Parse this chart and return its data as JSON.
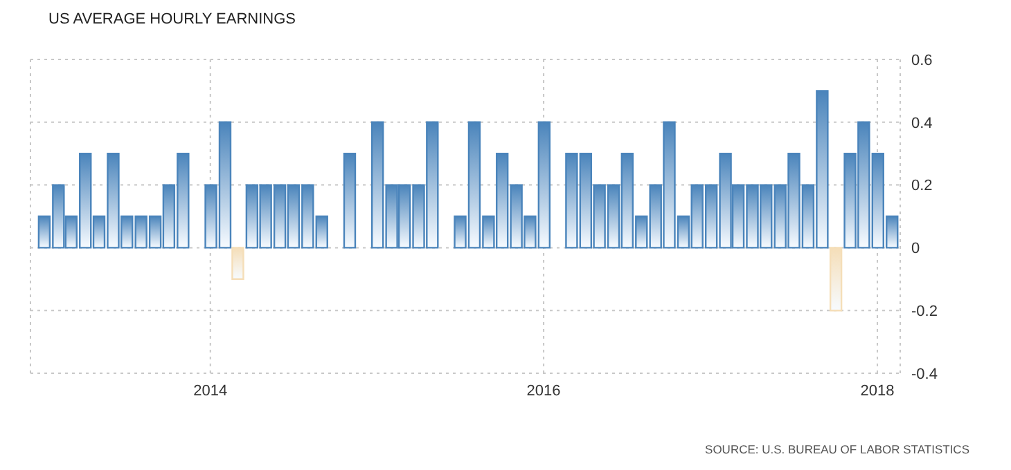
{
  "chart_data": {
    "type": "bar",
    "title": "US AVERAGE HOURLY EARNINGS",
    "x": [
      "2013-01",
      "2013-02",
      "2013-03",
      "2013-04",
      "2013-05",
      "2013-06",
      "2013-07",
      "2013-08",
      "2013-09",
      "2013-10",
      "2013-11",
      "2013-12",
      "2014-01",
      "2014-02",
      "2014-03",
      "2014-04",
      "2014-05",
      "2014-06",
      "2014-07",
      "2014-08",
      "2014-09",
      "2014-10",
      "2014-11",
      "2014-12",
      "2015-01",
      "2015-02",
      "2015-03",
      "2015-04",
      "2015-05",
      "2015-06",
      "2015-07",
      "2015-08",
      "2015-09",
      "2015-10",
      "2015-11",
      "2015-12",
      "2016-01",
      "2016-02",
      "2016-03",
      "2016-04",
      "2016-05",
      "2016-06",
      "2016-07",
      "2016-08",
      "2016-09",
      "2016-10",
      "2016-11",
      "2016-12",
      "2017-01",
      "2017-02",
      "2017-03",
      "2017-04",
      "2017-05",
      "2017-06",
      "2017-07",
      "2017-08",
      "2017-09",
      "2017-10",
      "2017-11",
      "2017-12",
      "2018-01",
      "2018-02"
    ],
    "values": [
      0.1,
      0.2,
      0.1,
      0.3,
      0.1,
      0.3,
      0.1,
      0.1,
      0.1,
      0.2,
      0.3,
      0,
      0.2,
      0.4,
      -0.1,
      0.2,
      0.2,
      0.2,
      0.2,
      0.2,
      0.1,
      0,
      0.3,
      0,
      0.4,
      0.2,
      0.2,
      0.2,
      0.4,
      0,
      0.1,
      0.4,
      0.1,
      0.3,
      0.2,
      0.1,
      0.4,
      0,
      0.3,
      0.3,
      0.2,
      0.2,
      0.3,
      0.1,
      0.2,
      0.4,
      0.1,
      0.2,
      0.2,
      0.3,
      0.2,
      0.2,
      0.2,
      0.2,
      0.3,
      0.2,
      0.5,
      -0.2,
      0.3,
      0.4,
      0.3,
      0.1
    ],
    "colors": [
      "#4a84bb",
      "#4a84bb",
      "#4a84bb",
      "#4a84bb",
      "#4a84bb",
      "#4a84bb",
      "#4a84bb",
      "#4a84bb",
      "#4a84bb",
      "#4a84bb",
      "#4a84bb",
      "#4a84bb",
      "#4a84bb",
      "#4a84bb",
      "#f5deb8",
      "#4a84bb",
      "#4a84bb",
      "#4a84bb",
      "#4a84bb",
      "#4a84bb",
      "#4a84bb",
      "#4a84bb",
      "#4a84bb",
      "#4a84bb",
      "#4a84bb",
      "#4a84bb",
      "#4a84bb",
      "#4a84bb",
      "#4a84bb",
      "#4a84bb",
      "#4a84bb",
      "#4a84bb",
      "#4a84bb",
      "#4a84bb",
      "#4a84bb",
      "#4a84bb",
      "#4a84bb",
      "#4a84bb",
      "#4a84bb",
      "#4a84bb",
      "#4a84bb",
      "#4a84bb",
      "#4a84bb",
      "#4a84bb",
      "#4a84bb",
      "#4a84bb",
      "#4a84bb",
      "#4a84bb",
      "#4a84bb",
      "#4a84bb",
      "#4a84bb",
      "#4a84bb",
      "#4a84bb",
      "#4a84bb",
      "#4a84bb",
      "#4a84bb",
      "#4a84bb",
      "#f5deb8",
      "#4a84bb",
      "#4a84bb",
      "#4a84bb",
      "#4a84bb"
    ],
    "xlim": [
      "2012-12-03",
      "2018-02-20"
    ],
    "xticks": [
      "2014",
      "2016",
      "2018"
    ],
    "ylim": [
      -0.4,
      0.6
    ],
    "yticks": [
      -0.4,
      -0.2,
      0,
      0.2,
      0.4,
      0.6
    ],
    "grid": true,
    "annotations": [
      "SOURCE: U.S. BUREAU OF LABOR STATISTICS"
    ]
  }
}
